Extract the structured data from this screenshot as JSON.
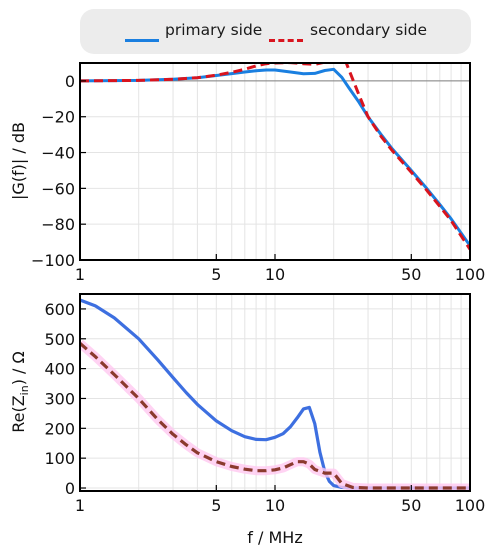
{
  "legend": {
    "primary_label": "primary side",
    "secondary_label": "secondary side"
  },
  "colors": {
    "primary": "#1a7fe0",
    "secondary": "#d9141e",
    "primary_bottom": "#3d6fe0",
    "secondary_bottom": "#8b3a2e",
    "secondary_bottom_shadow": "#ffc8f0",
    "zero_line": "#808080",
    "grid": "#e4e4e4"
  },
  "chart_data": [
    {
      "type": "line",
      "title": "",
      "xlabel": "",
      "ylabel": "|G(f)| / dB",
      "x_scale": "log",
      "xlim": [
        1,
        100
      ],
      "ylim": [
        -100,
        10
      ],
      "x_ticks": [
        1,
        5,
        10,
        50,
        100
      ],
      "x_tick_labels": [
        "1",
        "5",
        "10",
        "50",
        "100"
      ],
      "y_ticks": [
        0,
        -20,
        -40,
        -60,
        -80,
        -100
      ],
      "y_tick_labels": [
        "0",
        "−20",
        "−40",
        "−60",
        "−80",
        "−100"
      ],
      "reference_line": 0,
      "grid": true,
      "series": [
        {
          "name": "primary side",
          "line_style": "solid",
          "x": [
            1,
            2,
            3,
            4,
            5,
            6,
            7,
            8,
            9,
            10,
            12,
            14,
            16,
            18,
            20,
            22,
            24,
            27,
            30,
            35,
            40,
            50,
            60,
            70,
            80,
            100
          ],
          "y": [
            0,
            0.3,
            0.9,
            1.8,
            3,
            4.1,
            5,
            5.7,
            6.1,
            6.1,
            5,
            4,
            4.2,
            5.8,
            6.5,
            2,
            -4,
            -12,
            -20,
            -30,
            -38,
            -50,
            -60,
            -69,
            -77,
            -92
          ]
        },
        {
          "name": "secondary side",
          "line_style": "dashed",
          "x": [
            1,
            2,
            3,
            4,
            5,
            6,
            7,
            8,
            9,
            10,
            12,
            14,
            16,
            18,
            20,
            22,
            23,
            24,
            27,
            30,
            35,
            40,
            50,
            60,
            70,
            80,
            100
          ],
          "y": [
            0,
            0.3,
            0.9,
            1.8,
            3.2,
            4.8,
            6.5,
            8.4,
            9.6,
            10,
            10.2,
            9.6,
            9.3,
            10.5,
            10.6,
            10.5,
            11.2,
            6,
            -8,
            -20,
            -31,
            -39,
            -51,
            -61,
            -70,
            -78,
            -94
          ]
        }
      ]
    },
    {
      "type": "line",
      "title": "",
      "xlabel": "f / MHz",
      "ylabel": "Re(Z_in) / Ω",
      "x_scale": "log",
      "xlim": [
        1,
        100
      ],
      "ylim": [
        -10,
        650
      ],
      "x_ticks": [
        1,
        5,
        10,
        50,
        100
      ],
      "x_tick_labels": [
        "1",
        "5",
        "10",
        "50",
        "100"
      ],
      "y_ticks": [
        0,
        100,
        200,
        300,
        400,
        500,
        600
      ],
      "y_tick_labels": [
        "0",
        "100",
        "200",
        "300",
        "400",
        "500",
        "600"
      ],
      "grid": true,
      "series": [
        {
          "line_style": "solid",
          "x": [
            1,
            1.2,
            1.5,
            2,
            2.5,
            3,
            3.5,
            4,
            5,
            6,
            7,
            8,
            9,
            10,
            11,
            12,
            13,
            14,
            15,
            16,
            17,
            18,
            19,
            20,
            22,
            25,
            30,
            40,
            60,
            100
          ],
          "y": [
            630,
            610,
            570,
            500,
            430,
            370,
            320,
            280,
            225,
            192,
            172,
            163,
            162,
            170,
            182,
            205,
            235,
            265,
            270,
            215,
            120,
            55,
            22,
            8,
            2,
            0,
            0,
            0,
            0,
            0
          ]
        },
        {
          "line_style": "dashed",
          "x": [
            1,
            1.2,
            1.5,
            2,
            2.5,
            3,
            3.5,
            4,
            5,
            6,
            7,
            8,
            9,
            10,
            11,
            12,
            13,
            14,
            15,
            16,
            18,
            20,
            22,
            25,
            30,
            40,
            60,
            100
          ],
          "y": [
            485,
            440,
            380,
            300,
            230,
            180,
            145,
            118,
            88,
            72,
            63,
            58,
            58,
            61,
            67,
            78,
            88,
            88,
            80,
            62,
            50,
            50,
            15,
            2,
            0,
            0,
            0,
            0
          ]
        }
      ]
    }
  ]
}
